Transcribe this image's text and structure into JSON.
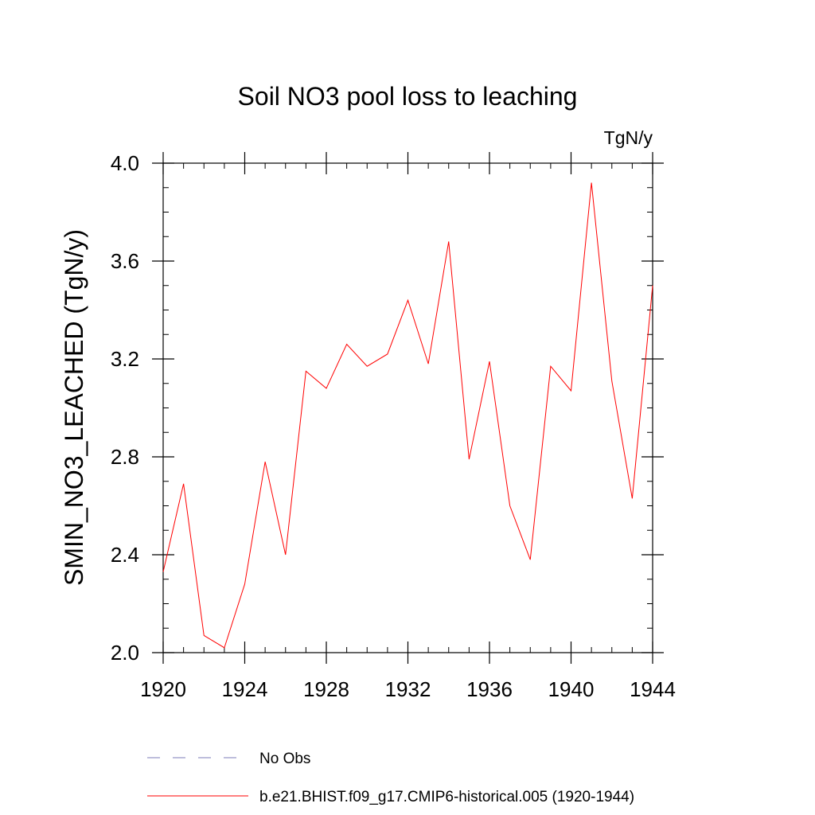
{
  "chart_data": {
    "type": "line",
    "title": "Soil NO3 pool loss to leaching",
    "units_label": "TgN/y",
    "ylabel": "SMIN_NO3_LEACHED  (TgN/y)",
    "xlabel": "",
    "xlim": [
      1920,
      1944
    ],
    "ylim": [
      2.0,
      4.0
    ],
    "x_major_ticks": [
      1920,
      1924,
      1928,
      1932,
      1936,
      1940,
      1944
    ],
    "x_tick_labels": [
      "1920",
      "1924",
      "1928",
      "1932",
      "1936",
      "1940",
      "1944"
    ],
    "x_minor_step": 1,
    "y_major_ticks": [
      2.0,
      2.4,
      2.8,
      3.2,
      3.6,
      4.0
    ],
    "y_tick_labels": [
      "2.0",
      "2.4",
      "2.8",
      "3.2",
      "3.6",
      "4.0"
    ],
    "y_minor_step": 0.1,
    "grid": false,
    "legend_position": "bottom",
    "series": [
      {
        "name": "b.e21.BHIST.f09_g17.CMIP6-historical.005 (1920-1944)",
        "color": "#ff0000",
        "x": [
          1920,
          1921,
          1922,
          1923,
          1924,
          1925,
          1926,
          1927,
          1928,
          1929,
          1930,
          1931,
          1932,
          1933,
          1934,
          1935,
          1936,
          1937,
          1938,
          1939,
          1940,
          1941,
          1942,
          1943,
          1944
        ],
        "y": [
          2.33,
          2.69,
          2.07,
          2.02,
          2.28,
          2.78,
          2.4,
          3.15,
          3.08,
          3.26,
          3.17,
          3.22,
          3.44,
          3.18,
          3.68,
          2.79,
          3.19,
          2.6,
          2.38,
          3.17,
          3.07,
          3.92,
          3.11,
          2.63,
          3.5
        ]
      }
    ],
    "legend": [
      {
        "label": "No Obs",
        "color": "#7d7db8",
        "dash": true
      },
      {
        "label": "b.e21.BHIST.f09_g17.CMIP6-historical.005 (1920-1944)",
        "color": "#ff0000",
        "dash": false
      }
    ]
  }
}
